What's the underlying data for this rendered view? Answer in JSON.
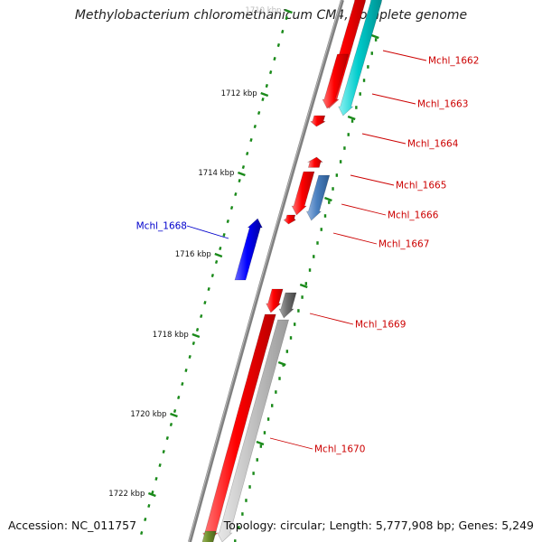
{
  "header": {
    "title": "Methylobacterium chloromethanicum CM4, complete genome"
  },
  "footer": {
    "accession": "Accession: NC_011757",
    "summary": "Topology: circular; Length: 5,777,908 bp; Genes: 5,249"
  },
  "colors": {
    "forward_cds": "#ff0000",
    "reverse_cds": "#0000ff",
    "cyan_feature": "#00cccc",
    "steelblue_feature": "#4a80c0",
    "dark_gray_feature": "#707070",
    "light_gray_feature": "#c4c4c4",
    "backbone": "#808080",
    "kbp_ticks": "#1a8a1a",
    "forward_labels": "#cc0000",
    "reverse_labels": "#0000cc"
  },
  "kbp_labels": [
    "1710 kbp",
    "1712 kbp",
    "1714 kbp",
    "1716 kbp",
    "1718 kbp",
    "1720 kbp",
    "1722 kbp"
  ],
  "gene_labels": [
    {
      "name": "Mchl_1662",
      "strand": "forward"
    },
    {
      "name": "Mchl_1663",
      "strand": "forward"
    },
    {
      "name": "Mchl_1664",
      "strand": "forward"
    },
    {
      "name": "Mchl_1665",
      "strand": "forward"
    },
    {
      "name": "Mchl_1666",
      "strand": "forward"
    },
    {
      "name": "Mchl_1667",
      "strand": "forward"
    },
    {
      "name": "Mchl_1668",
      "strand": "reverse"
    },
    {
      "name": "Mchl_1669",
      "strand": "forward"
    },
    {
      "name": "Mchl_1670",
      "strand": "forward"
    }
  ]
}
